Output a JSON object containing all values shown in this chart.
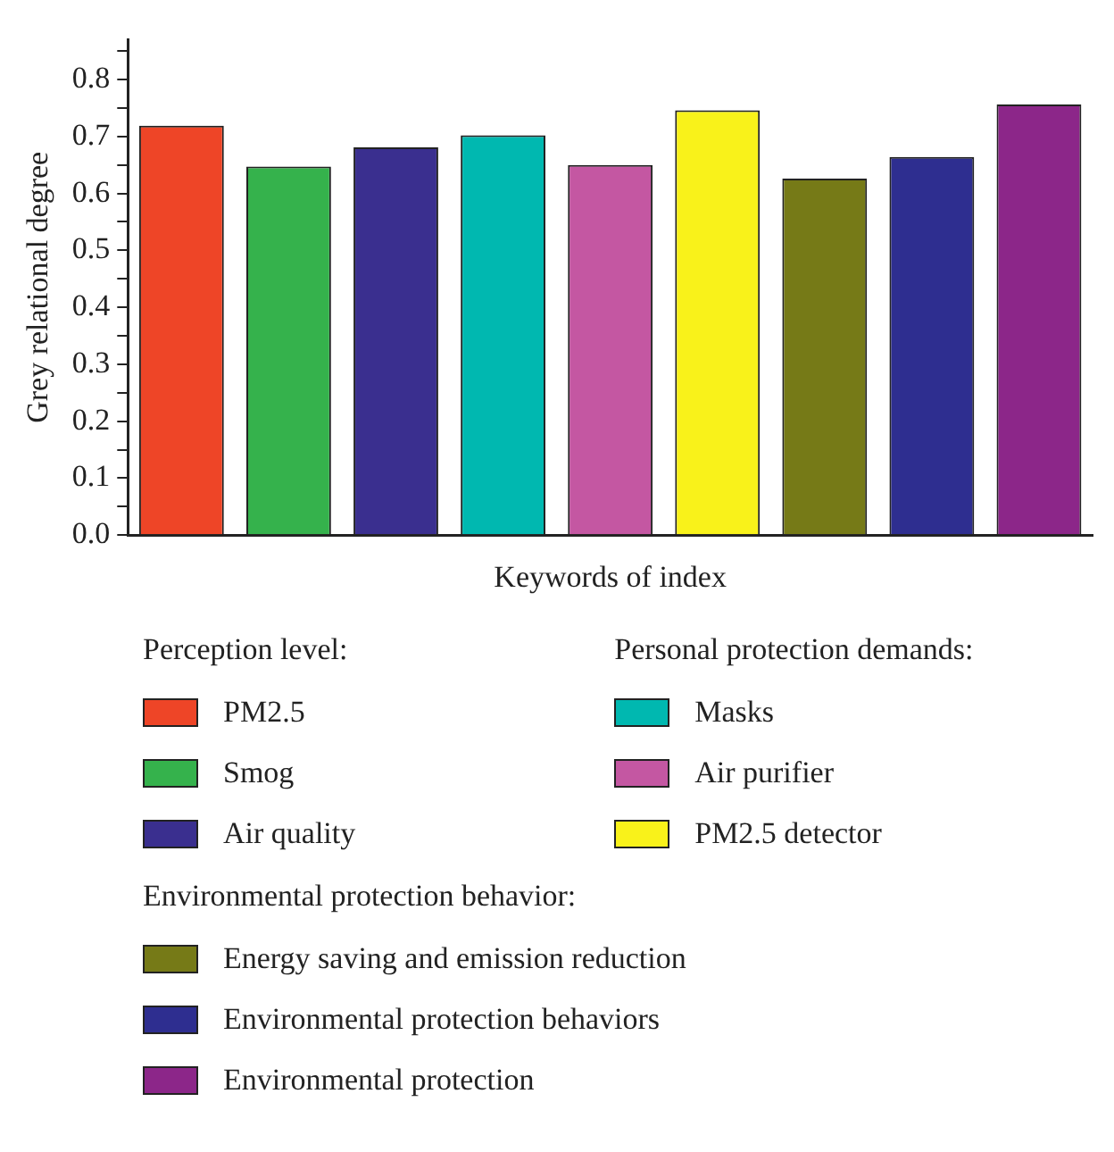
{
  "chart_data": {
    "type": "bar",
    "ylabel": "Grey relational degree",
    "xlabel": "Keywords of index",
    "categories": [
      null,
      null,
      null,
      null,
      null,
      null,
      null,
      null,
      null
    ],
    "series": [
      {
        "name": "PM2.5",
        "color": "#ee4527",
        "values": [
          0.719,
          null,
          null,
          null,
          null,
          null,
          null,
          null,
          null
        ]
      },
      {
        "name": "Smog",
        "color": "#35b24c",
        "values": [
          null,
          0.647,
          null,
          null,
          null,
          null,
          null,
          null,
          null
        ]
      },
      {
        "name": "Air quality",
        "color": "#3a2f8f",
        "values": [
          null,
          null,
          0.681,
          null,
          null,
          null,
          null,
          null,
          null
        ]
      },
      {
        "name": "Masks",
        "color": "#00b8b0",
        "values": [
          null,
          null,
          null,
          0.702,
          null,
          null,
          null,
          null,
          null
        ]
      },
      {
        "name": "Air purifier",
        "color": "#c457a2",
        "values": [
          null,
          null,
          null,
          null,
          0.65,
          null,
          null,
          null,
          null
        ]
      },
      {
        "name": "PM2.5 detector",
        "color": "#f9f21a",
        "values": [
          null,
          null,
          null,
          null,
          null,
          0.746,
          null,
          null,
          null
        ]
      },
      {
        "name": "Energy saving and emission reduction",
        "color": "#767a17",
        "values": [
          null,
          null,
          null,
          null,
          null,
          null,
          0.626,
          null,
          null
        ]
      },
      {
        "name": "Environmental protection behaviors",
        "color": "#2e2e90",
        "values": [
          null,
          null,
          null,
          null,
          null,
          null,
          null,
          0.664,
          null
        ]
      },
      {
        "name": "Environmental protection",
        "color": "#8c2689",
        "values": [
          null,
          null,
          null,
          null,
          null,
          null,
          null,
          null,
          0.756
        ]
      }
    ],
    "annotations": [
      "Perception level:",
      "Personal protection demands:",
      "Environmental protection behavior:"
    ],
    "ylim": [
      0,
      0.87
    ],
    "yticks": [
      {
        "value": 0,
        "label": "0.0"
      },
      {
        "value": 0.05,
        "label": null
      },
      {
        "value": 0.1,
        "label": "0.1"
      },
      {
        "value": 0.15,
        "label": null
      },
      {
        "value": 0.2,
        "label": "0.2"
      },
      {
        "value": 0.25,
        "label": null
      },
      {
        "value": 0.3,
        "label": "0.3"
      },
      {
        "value": 0.35,
        "label": null
      },
      {
        "value": 0.4,
        "label": "0.4"
      },
      {
        "value": 0.45,
        "label": null
      },
      {
        "value": 0.5,
        "label": "0.5"
      },
      {
        "value": 0.55,
        "label": null
      },
      {
        "value": 0.6,
        "label": "0.6"
      },
      {
        "value": 0.65,
        "label": null
      },
      {
        "value": 0.7,
        "label": "0.7"
      },
      {
        "value": 0.75,
        "label": null
      },
      {
        "value": 0.8,
        "label": "0.8"
      },
      {
        "value": 0.85,
        "label": null
      }
    ],
    "grid": false,
    "legend": "bottom"
  }
}
